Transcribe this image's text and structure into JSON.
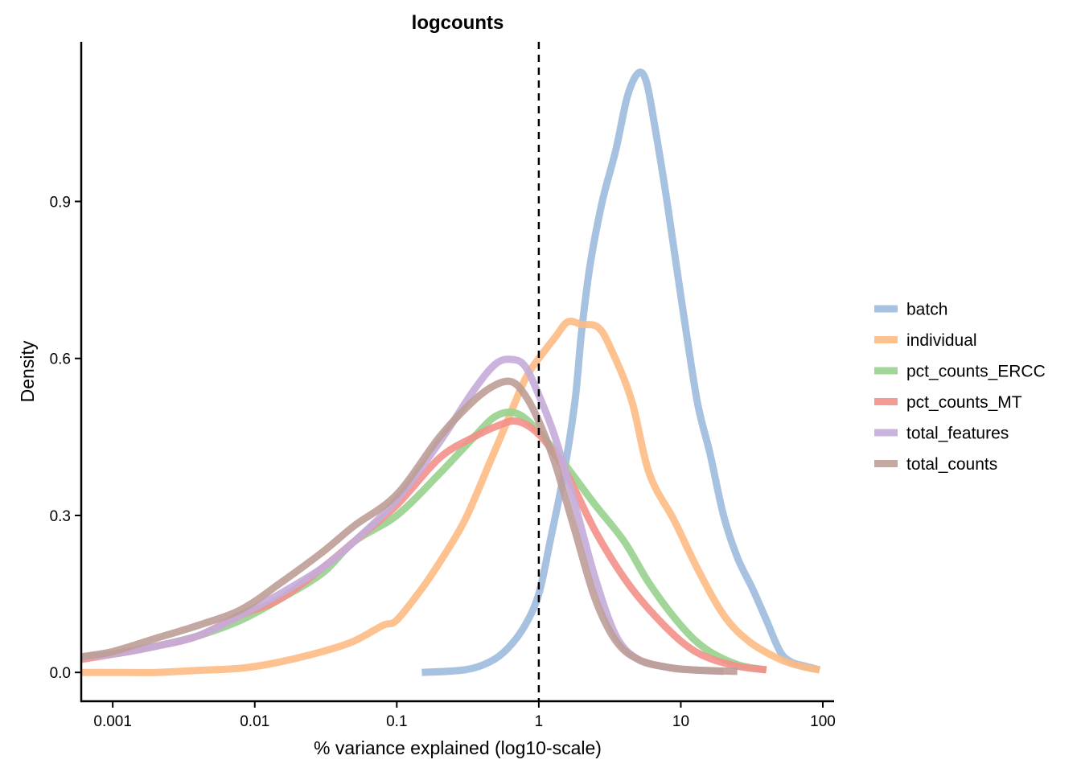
{
  "chart_data": {
    "type": "line",
    "subtype": "density",
    "title": "logcounts",
    "xlabel": "% variance explained (log10-scale)",
    "ylabel": "Density",
    "x_scale": "log10",
    "xlim": [
      0.0006,
      120
    ],
    "ylim": [
      -0.055,
      1.205
    ],
    "x_ticks": [
      0.001,
      0.01,
      0.1,
      1,
      10,
      100
    ],
    "x_tick_labels": [
      "0.001",
      "0.01",
      "0.1",
      "1",
      "10",
      "100"
    ],
    "y_ticks": [
      0,
      0.3,
      0.6,
      0.9
    ],
    "y_tick_labels": [
      "0.0",
      "0.3",
      "0.6",
      "0.9"
    ],
    "grid": false,
    "legend_position": "right",
    "reference_line": {
      "x": 1,
      "style": "dashed"
    },
    "series": [
      {
        "name": "batch",
        "color": "#9DBBDE",
        "points": [
          [
            0.15,
            0.0
          ],
          [
            0.3,
            0.005
          ],
          [
            0.45,
            0.02
          ],
          [
            0.6,
            0.045
          ],
          [
            0.8,
            0.09
          ],
          [
            1.0,
            0.15
          ],
          [
            1.2,
            0.25
          ],
          [
            1.5,
            0.38
          ],
          [
            1.8,
            0.52
          ],
          [
            2.0,
            0.65
          ],
          [
            2.3,
            0.78
          ],
          [
            2.8,
            0.9
          ],
          [
            3.5,
            1.0
          ],
          [
            4.2,
            1.1
          ],
          [
            5.0,
            1.145
          ],
          [
            5.7,
            1.13
          ],
          [
            6.5,
            1.05
          ],
          [
            8.0,
            0.9
          ],
          [
            10.0,
            0.72
          ],
          [
            13.0,
            0.52
          ],
          [
            16.0,
            0.42
          ],
          [
            20.0,
            0.3
          ],
          [
            25.0,
            0.22
          ],
          [
            32.0,
            0.16
          ],
          [
            40.0,
            0.1
          ],
          [
            50.0,
            0.04
          ],
          [
            60.0,
            0.02
          ],
          [
            75.0,
            0.012
          ],
          [
            95.0,
            0.005
          ]
        ]
      },
      {
        "name": "individual",
        "color": "#FDBB84",
        "points": [
          [
            0.0006,
            0.0
          ],
          [
            0.001,
            0.0
          ],
          [
            0.002,
            0.0
          ],
          [
            0.004,
            0.004
          ],
          [
            0.008,
            0.008
          ],
          [
            0.015,
            0.02
          ],
          [
            0.03,
            0.04
          ],
          [
            0.05,
            0.06
          ],
          [
            0.08,
            0.09
          ],
          [
            0.1,
            0.1
          ],
          [
            0.15,
            0.16
          ],
          [
            0.2,
            0.21
          ],
          [
            0.3,
            0.29
          ],
          [
            0.45,
            0.4
          ],
          [
            0.6,
            0.48
          ],
          [
            0.8,
            0.56
          ],
          [
            1.0,
            0.6
          ],
          [
            1.3,
            0.64
          ],
          [
            1.6,
            0.67
          ],
          [
            2.0,
            0.665
          ],
          [
            2.6,
            0.66
          ],
          [
            3.2,
            0.62
          ],
          [
            4.5,
            0.52
          ],
          [
            6.0,
            0.38
          ],
          [
            9.0,
            0.29
          ],
          [
            13.0,
            0.2
          ],
          [
            20.0,
            0.11
          ],
          [
            30.0,
            0.06
          ],
          [
            50.0,
            0.025
          ],
          [
            75.0,
            0.01
          ],
          [
            95.0,
            0.005
          ]
        ]
      },
      {
        "name": "pct_counts_ERCC",
        "color": "#98D18E",
        "points": [
          [
            0.0006,
            0.03
          ],
          [
            0.001,
            0.035
          ],
          [
            0.002,
            0.05
          ],
          [
            0.004,
            0.07
          ],
          [
            0.008,
            0.1
          ],
          [
            0.015,
            0.14
          ],
          [
            0.03,
            0.19
          ],
          [
            0.05,
            0.25
          ],
          [
            0.1,
            0.3
          ],
          [
            0.2,
            0.38
          ],
          [
            0.35,
            0.45
          ],
          [
            0.5,
            0.49
          ],
          [
            0.7,
            0.495
          ],
          [
            1.0,
            0.46
          ],
          [
            1.5,
            0.4
          ],
          [
            2.5,
            0.32
          ],
          [
            4.0,
            0.25
          ],
          [
            6.0,
            0.17
          ],
          [
            10.0,
            0.09
          ],
          [
            15.0,
            0.045
          ],
          [
            25.0,
            0.015
          ],
          [
            40.0,
            0.005
          ]
        ]
      },
      {
        "name": "pct_counts_MT",
        "color": "#F4908A",
        "points": [
          [
            0.0006,
            0.025
          ],
          [
            0.001,
            0.035
          ],
          [
            0.002,
            0.05
          ],
          [
            0.004,
            0.07
          ],
          [
            0.008,
            0.11
          ],
          [
            0.015,
            0.14
          ],
          [
            0.03,
            0.2
          ],
          [
            0.05,
            0.25
          ],
          [
            0.1,
            0.32
          ],
          [
            0.2,
            0.41
          ],
          [
            0.35,
            0.45
          ],
          [
            0.5,
            0.47
          ],
          [
            0.7,
            0.48
          ],
          [
            1.0,
            0.455
          ],
          [
            1.5,
            0.39
          ],
          [
            2.5,
            0.27
          ],
          [
            4.0,
            0.18
          ],
          [
            6.0,
            0.12
          ],
          [
            10.0,
            0.06
          ],
          [
            15.0,
            0.03
          ],
          [
            25.0,
            0.012
          ],
          [
            40.0,
            0.005
          ]
        ]
      },
      {
        "name": "total_features",
        "color": "#C4ACD9",
        "points": [
          [
            0.0006,
            0.03
          ],
          [
            0.001,
            0.035
          ],
          [
            0.002,
            0.05
          ],
          [
            0.004,
            0.07
          ],
          [
            0.008,
            0.11
          ],
          [
            0.015,
            0.15
          ],
          [
            0.03,
            0.2
          ],
          [
            0.05,
            0.25
          ],
          [
            0.1,
            0.33
          ],
          [
            0.2,
            0.44
          ],
          [
            0.35,
            0.54
          ],
          [
            0.5,
            0.59
          ],
          [
            0.65,
            0.598
          ],
          [
            0.8,
            0.585
          ],
          [
            1.0,
            0.53
          ],
          [
            1.3,
            0.45
          ],
          [
            1.8,
            0.32
          ],
          [
            2.5,
            0.18
          ],
          [
            3.5,
            0.07
          ],
          [
            5.0,
            0.025
          ],
          [
            8.0,
            0.01
          ],
          [
            12.0,
            0.005
          ],
          [
            20.0,
            0.002
          ]
        ]
      },
      {
        "name": "total_counts",
        "color": "#BC9D96",
        "points": [
          [
            0.0006,
            0.03
          ],
          [
            0.001,
            0.04
          ],
          [
            0.002,
            0.065
          ],
          [
            0.004,
            0.09
          ],
          [
            0.008,
            0.12
          ],
          [
            0.015,
            0.17
          ],
          [
            0.03,
            0.23
          ],
          [
            0.05,
            0.28
          ],
          [
            0.1,
            0.34
          ],
          [
            0.2,
            0.45
          ],
          [
            0.35,
            0.52
          ],
          [
            0.5,
            0.55
          ],
          [
            0.65,
            0.555
          ],
          [
            0.8,
            0.53
          ],
          [
            1.0,
            0.48
          ],
          [
            1.3,
            0.4
          ],
          [
            1.8,
            0.27
          ],
          [
            2.5,
            0.14
          ],
          [
            3.5,
            0.06
          ],
          [
            5.0,
            0.025
          ],
          [
            8.0,
            0.01
          ],
          [
            12.0,
            0.005
          ],
          [
            25.0,
            0.002
          ]
        ]
      }
    ]
  }
}
